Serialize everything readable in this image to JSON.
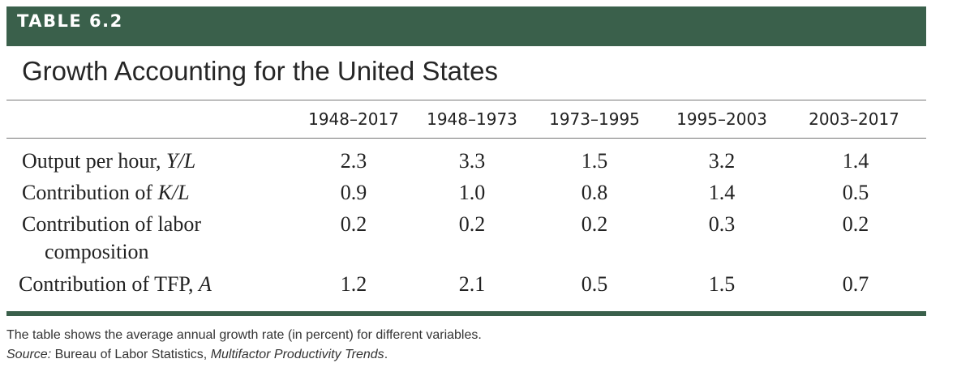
{
  "table_label": "TABLE 6.2",
  "title": "Growth Accounting for the United States",
  "colors": {
    "header_bar": "#3a604b",
    "bottom_rule": "#3a604b",
    "rule": "#777777",
    "text": "#222222"
  },
  "columns": [
    "1948–2017",
    "1948–1973",
    "1973–1995",
    "1995–2003",
    "2003–2017"
  ],
  "rows": [
    {
      "label_text": "Output per hour, ",
      "label_var": "Y/L",
      "values": [
        "2.3",
        "3.3",
        "1.5",
        "3.2",
        "1.4"
      ]
    },
    {
      "label_text": "Contribution of ",
      "label_var": "K/L",
      "values": [
        "0.9",
        "1.0",
        "0.8",
        "1.4",
        "0.5"
      ]
    },
    {
      "label_line1": "Contribution of labor",
      "label_line2": "composition",
      "values": [
        "0.2",
        "0.2",
        "0.2",
        "0.3",
        "0.2"
      ]
    },
    {
      "label_text": "Contribution of TFP, ",
      "label_var": "A",
      "values": [
        "1.2",
        "2.1",
        "0.5",
        "1.5",
        "0.7"
      ]
    }
  ],
  "notes": {
    "line1": "The table shows the average annual growth rate (in percent) for different variables.",
    "source_label": "Source:",
    "source_text": " Bureau of Labor Statistics, ",
    "source_pub": "Multifactor Productivity Trends",
    "source_end": "."
  }
}
